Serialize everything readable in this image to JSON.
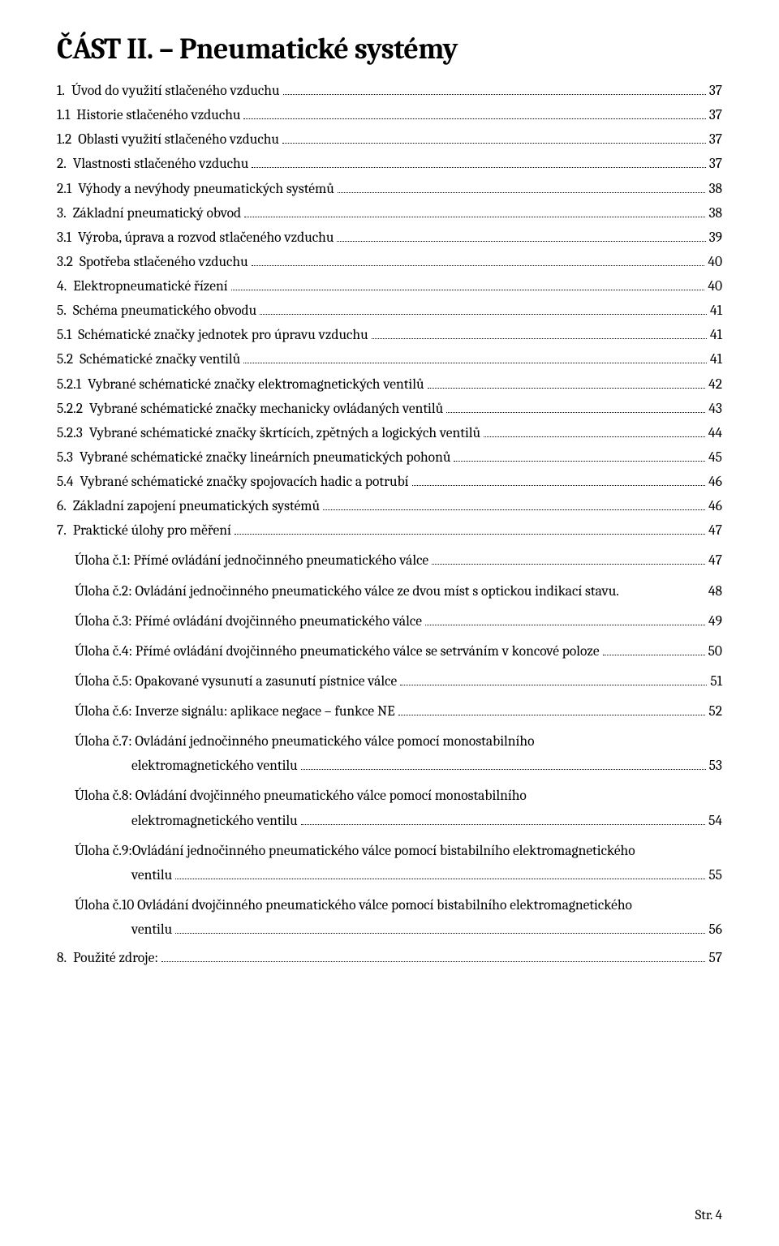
{
  "title": "ČÁST II. – Pneumatické systémy",
  "footer": "Str. 4",
  "toc": [
    {
      "num": "1.",
      "text": "Úvod do využití stlačeného vzduchu",
      "page": "37",
      "indent": "indent-0"
    },
    {
      "num": "1.1",
      "text": "Historie stlačeného vzduchu",
      "page": "37",
      "indent": "indent-1"
    },
    {
      "num": "1.2",
      "text": "Oblasti využití stlačeného vzduchu",
      "page": "37",
      "indent": "indent-1"
    },
    {
      "num": "2.",
      "text": "Vlastnosti stlačeného vzduchu",
      "page": "37",
      "indent": "indent-0"
    },
    {
      "num": "2.1",
      "text": "Výhody a nevýhody pneumatických systémů",
      "page": "38",
      "indent": "indent-1"
    },
    {
      "num": "3.",
      "text": "Základní pneumatický obvod",
      "page": "38",
      "indent": "indent-0"
    },
    {
      "num": "3.1",
      "text": "Výroba, úprava a rozvod stlačeného vzduchu",
      "page": "39",
      "indent": "indent-1"
    },
    {
      "num": "3.2",
      "text": "Spotřeba stlačeného vzduchu",
      "page": "40",
      "indent": "indent-1"
    },
    {
      "num": "4.",
      "text": "Elektropneumatické řízení",
      "page": "40",
      "indent": "indent-0"
    },
    {
      "num": "5.",
      "text": "Schéma pneumatického obvodu",
      "page": "41",
      "indent": "indent-0"
    },
    {
      "num": "5.1",
      "text": "Schématické značky jednotek pro úpravu vzduchu",
      "page": "41",
      "indent": "indent-1"
    },
    {
      "num": "5.2",
      "text": "Schématické značky ventilů",
      "page": "41",
      "indent": "indent-1"
    },
    {
      "num": "5.2.1",
      "text": "Vybrané schématické značky elektromagnetických ventilů",
      "page": "42",
      "indent": "indent-2"
    },
    {
      "num": "5.2.2",
      "text": "Vybrané schématické značky mechanicky ovládaných ventilů",
      "page": "43",
      "indent": "indent-2"
    },
    {
      "num": "5.2.3",
      "text": "Vybrané schématické značky škrtících, zpětných a logických ventilů",
      "page": "44",
      "indent": "indent-2"
    },
    {
      "num": "5.3",
      "text": "Vybrané schématické značky lineárních pneumatických pohonů",
      "page": "45",
      "indent": "indent-1"
    },
    {
      "num": "5.4",
      "text": "Vybrané schématické značky spojovacích hadic a potrubí",
      "page": "46",
      "indent": "indent-1"
    },
    {
      "num": "6.",
      "text": "Základní zapojení pneumatických systémů",
      "page": "46",
      "indent": "indent-0"
    },
    {
      "num": "7.",
      "text": "Praktické úlohy pro měření",
      "page": "47",
      "indent": "indent-0"
    }
  ],
  "ulohy": [
    {
      "lines": [
        "Úloha č.1: Přímé ovládání jednočinného pneumatického válce"
      ],
      "page": "47"
    },
    {
      "lines": [
        "Úloha č.2: Ovládání jednočinného pneumatického válce ze dvou míst s optickou indikací stavu."
      ],
      "page": "48",
      "nolead": true
    },
    {
      "lines": [
        "Úloha č.3: Přímé ovládání dvojčinného pneumatického válce"
      ],
      "page": "49"
    },
    {
      "lines": [
        "Úloha č.4: Přímé ovládání dvojčinného pneumatického válce se setrváním v koncové poloze"
      ],
      "page": "50"
    },
    {
      "lines": [
        "Úloha č.5: Opakované vysunutí a zasunutí pístnice válce"
      ],
      "page": "51"
    },
    {
      "lines": [
        "Úloha č.6: Inverze signálu: aplikace negace – funkce NE"
      ],
      "page": "52"
    },
    {
      "lines": [
        "Úloha č.7: Ovládání jednočinného pneumatického válce pomocí monostabilního",
        "elektromagnetického ventilu"
      ],
      "page": "53"
    },
    {
      "lines": [
        "Úloha č.8: Ovládání dvojčinného pneumatického válce pomocí monostabilního",
        "elektromagnetického ventilu"
      ],
      "page": "54"
    },
    {
      "lines": [
        "Úloha č.9:Ovládání jednočinného pneumatického válce pomocí bistabilního elektromagnetického",
        "ventilu"
      ],
      "page": "55"
    },
    {
      "lines": [
        "Úloha č.10 Ovládání dvojčinného pneumatického válce pomocí bistabilního elektromagnetického",
        "ventilu"
      ],
      "page": "56"
    }
  ],
  "last": {
    "num": "8.",
    "text": "Použité zdroje:",
    "page": "57"
  }
}
